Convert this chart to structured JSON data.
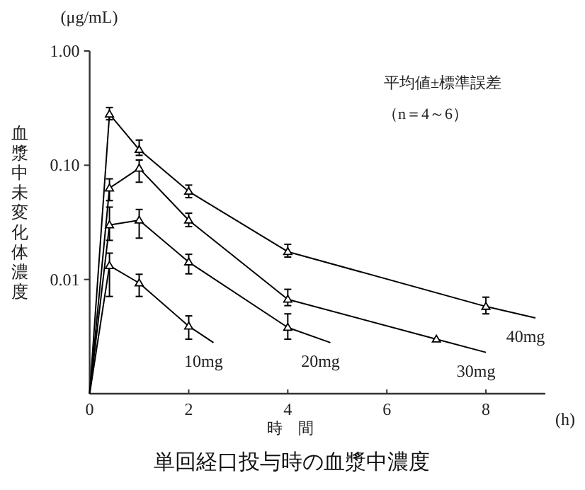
{
  "chart_data": {
    "type": "line",
    "title": "単回経口投与時の血漿中濃度",
    "xlabel": "時　間",
    "ylabel": "血漿中未変化体濃度",
    "annotations": [
      "(μg/mL)",
      "(h)",
      "平均値±標準誤差",
      "（n＝4～6）"
    ],
    "log": "y",
    "xlim": [
      0,
      9.2
    ],
    "ylim": [
      0.001,
      1
    ],
    "xticks": [
      0,
      2,
      4,
      6,
      8
    ],
    "yticks": [
      {
        "value": 1,
        "label": "1.00"
      },
      {
        "value": 0.1,
        "label": "0.10"
      },
      {
        "value": 0.01,
        "label": "0.01"
      }
    ],
    "series": [
      {
        "name": "40mg",
        "type": "line",
        "marker": "none",
        "color": "#000000",
        "x": [
          0,
          0.4,
          1,
          2,
          4,
          8,
          9
        ],
        "values": [
          0.001,
          0.28,
          0.137,
          0.059,
          0.0175,
          0.0058,
          0.0046
        ]
      },
      {
        "type": "scatter",
        "marker": "triangle",
        "color": "#000000",
        "x": [
          0.4,
          1,
          2,
          4,
          8
        ],
        "values": [
          0.28,
          0.137,
          0.059,
          0.0175,
          0.0058
        ],
        "errors": [
          [
            0.25,
            0.32
          ],
          [
            0.122,
            0.166
          ],
          [
            0.052,
            0.067
          ],
          [
            0.0157,
            0.0203
          ],
          [
            0.005,
            0.007
          ]
        ]
      },
      {
        "name": "30mg",
        "type": "line",
        "marker": "none",
        "color": "#000000",
        "x": [
          0,
          0.4,
          1,
          2,
          4,
          7,
          8
        ],
        "values": [
          0.001,
          0.063,
          0.094,
          0.033,
          0.0067,
          0.003,
          0.0023
        ]
      },
      {
        "type": "scatter",
        "marker": "triangle",
        "color": "#000000",
        "x": [
          0.4,
          1,
          2,
          4,
          7
        ],
        "values": [
          0.063,
          0.094,
          0.033,
          0.0067,
          0.003
        ],
        "errors": [
          [
            0.049,
            0.076
          ],
          [
            0.071,
            0.111
          ],
          [
            0.029,
            0.038
          ],
          [
            0.0059,
            0.0082
          ],
          null
        ]
      },
      {
        "name": "20mg",
        "type": "line",
        "marker": "none",
        "color": "#000000",
        "x": [
          0,
          0.4,
          1,
          2,
          4,
          4.86
        ],
        "values": [
          0.001,
          0.03,
          0.033,
          0.0142,
          0.0038,
          0.0028
        ]
      },
      {
        "type": "scatter",
        "marker": "triangle",
        "color": "#000000",
        "x": [
          0.4,
          1,
          2,
          4
        ],
        "values": [
          0.03,
          0.033,
          0.0142,
          0.0038
        ],
        "errors": [
          [
            0.022,
            0.043
          ],
          [
            0.023,
            0.041
          ],
          [
            0.0112,
            0.0166
          ],
          [
            0.003,
            0.005
          ]
        ]
      },
      {
        "name": "10mg",
        "type": "line",
        "marker": "none",
        "color": "#000000",
        "x": [
          0,
          0.4,
          1,
          2,
          2.5
        ],
        "values": [
          0.001,
          0.0132,
          0.0093,
          0.0039,
          0.0028
        ]
      },
      {
        "type": "scatter",
        "marker": "triangle",
        "color": "#000000",
        "x": [
          0.4,
          1,
          2
        ],
        "values": [
          0.0132,
          0.0093,
          0.0039
        ],
        "errors": [
          [
            0.0071,
            0.017
          ],
          [
            0.0071,
            0.0111
          ],
          [
            0.003,
            0.0048
          ]
        ]
      }
    ]
  }
}
